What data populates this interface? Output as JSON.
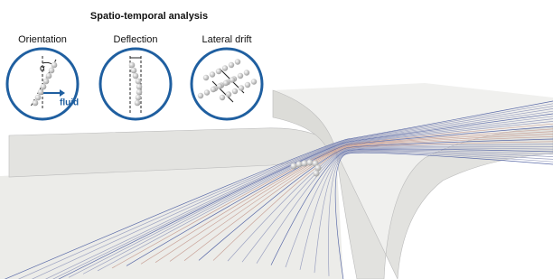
{
  "title": "Spatio-temporal analysis",
  "panels": [
    {
      "label": "Orientation",
      "angle_symbol": "α",
      "flow_label": "fluid"
    },
    {
      "label": "Deflection"
    },
    {
      "label": "Lateral drift"
    }
  ]
}
